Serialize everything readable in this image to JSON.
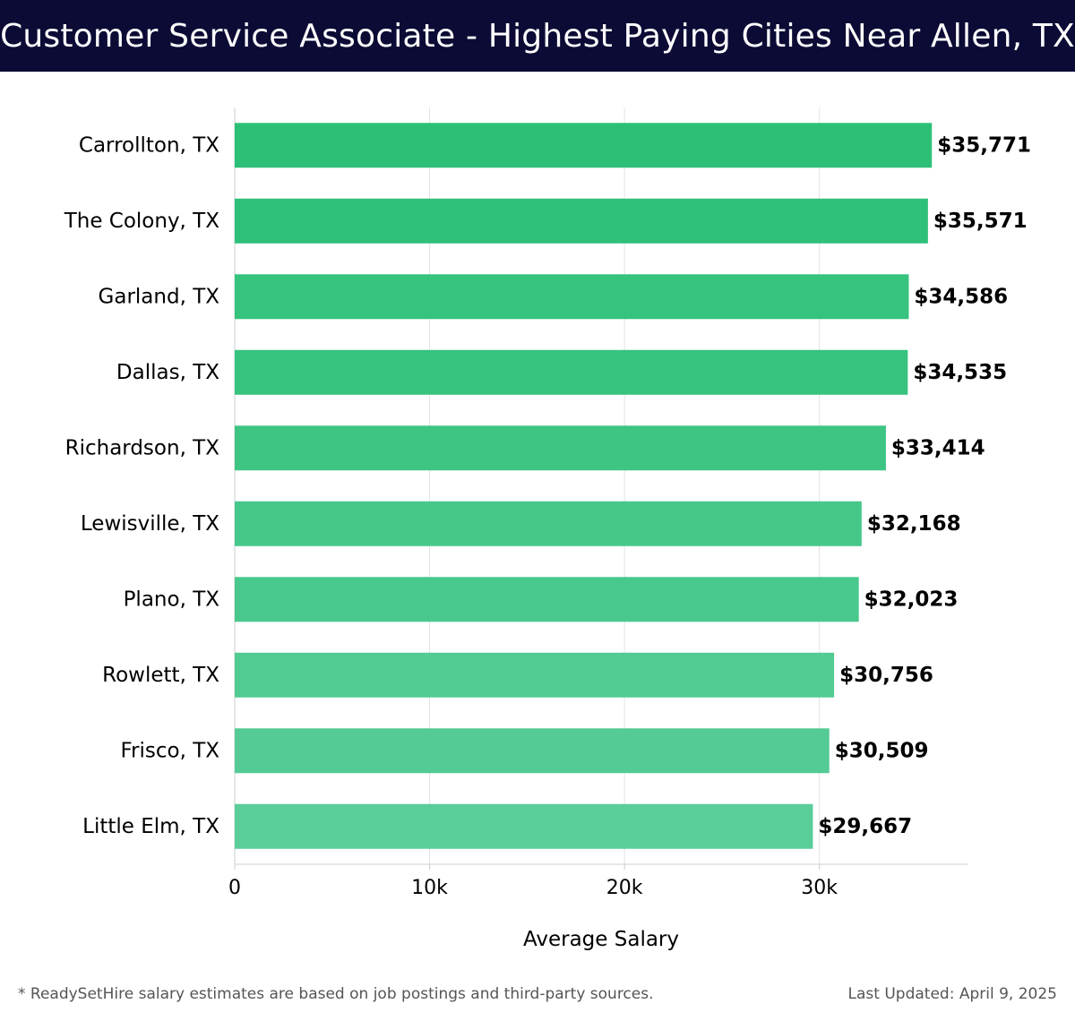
{
  "header": {
    "title": "Customer Service Associate - Highest Paying Cities Near Allen, TX"
  },
  "footer": {
    "note": "* ReadySetHire salary estimates are based on job postings and third-party sources.",
    "updated": "Last Updated: April 9, 2025"
  },
  "chart_data": {
    "type": "bar",
    "orientation": "horizontal",
    "categories": [
      "Carrollton, TX",
      "The Colony, TX",
      "Garland, TX",
      "Dallas, TX",
      "Richardson, TX",
      "Lewisville, TX",
      "Plano, TX",
      "Rowlett, TX",
      "Frisco, TX",
      "Little Elm, TX"
    ],
    "values": [
      35771,
      35571,
      34586,
      34535,
      33414,
      32168,
      32023,
      30756,
      30509,
      29667
    ],
    "value_labels": [
      "$35,771",
      "$35,571",
      "$34,586",
      "$34,535",
      "$33,414",
      "$32,168",
      "$32,023",
      "$30,756",
      "$30,509",
      "$29,667"
    ],
    "xlabel": "Average Salary",
    "ylabel": "",
    "xlim": [
      0,
      37600
    ],
    "x_ticks": [
      0,
      10000,
      20000,
      30000
    ],
    "x_tick_labels": [
      "0",
      "10k",
      "20k",
      "30k"
    ],
    "grid": "vertical",
    "legend": "none",
    "colors": {
      "high": "#2cc077",
      "low": "#5acd99",
      "gridline": "#e3e3e3",
      "axis": "#cccccc",
      "label_text": "#000000"
    }
  }
}
